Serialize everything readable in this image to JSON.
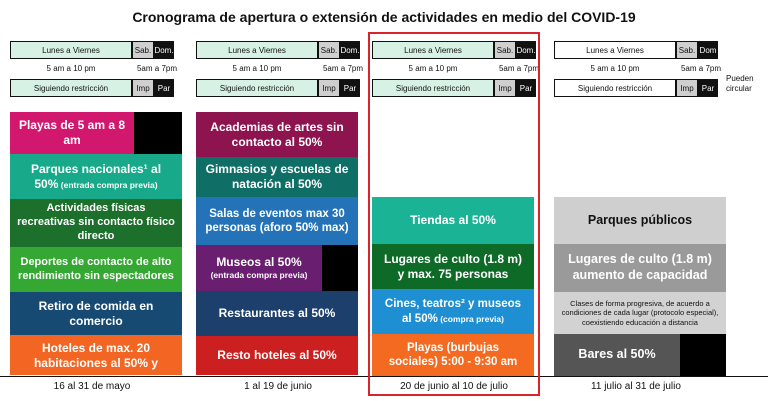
{
  "title": "Cronograma de apertura o extensión de actividades en medio del COVID-19",
  "schedule_labels": {
    "weekdays": "Lunes a Viernes",
    "saturday": "Sab.",
    "sunday": "Dom.",
    "sunday_last": "Dom",
    "hours_weekdays": "5 am a 10 pm",
    "hours_weekend": "5am a 7pm",
    "restriction": "Siguiendo restricción",
    "impar": "Imp",
    "par": "Par",
    "pueden_1": "Pueden",
    "pueden_2": "circular"
  },
  "colors": {
    "magenta": "#d1176e",
    "teal": "#159e86",
    "green": "#1d6f2c",
    "lime": "#35a833",
    "navy": "#174a73",
    "orange": "#f26522",
    "maroon": "#8e1450",
    "dark_teal": "#0f6f67",
    "blue": "#2472b7",
    "purple": "#6a1e6f",
    "dark_navy": "#1c3f6b",
    "red": "#cc1f1f",
    "aqua": "#1bb396",
    "dark_green": "#0d6a27",
    "sky": "#1f8fd3",
    "orange2": "#f46a21",
    "gray_light": "#cfcfcf",
    "gray_mid": "#9a9a9a",
    "gray_dark": "#555555",
    "highlight_red": "#d9242b"
  },
  "columns": [
    {
      "date": "16 al 31 de mayo",
      "blocks": [
        {
          "line1": "Playas de 5 am a 8",
          "line2": "am"
        },
        {
          "line1": "Parques nacionales¹ al",
          "line2": "50%",
          "small": " (entrada compra previa)"
        },
        {
          "line1": "Actividades físicas",
          "line2": "recreativas sin contacto físico",
          "line3": "directo"
        },
        {
          "line1": "Deportes de contacto de alto",
          "line2": "rendimiento sin espectadores"
        },
        {
          "line1": "Retiro de comida en",
          "line2": "comercio"
        },
        {
          "line1": "Hoteles de max. 20",
          "line2": "habitaciones al 50% y"
        }
      ]
    },
    {
      "date": "1 al 19 de junio",
      "blocks": [
        {
          "line1": "Academias de artes sin",
          "line2": "contacto al 50%"
        },
        {
          "line1": "Gimnasios y escuelas de",
          "line2": "natación al 50%"
        },
        {
          "line1": "Salas de eventos max 30",
          "line2": "personas (aforo 50% max)"
        },
        {
          "line1": "Museos al 50%",
          "small": "(entrada compra previa)"
        },
        {
          "line1": "Restaurantes al 50%"
        },
        {
          "line1": "Resto hoteles al 50%"
        }
      ]
    },
    {
      "date": "20 de junio al 10 de julio",
      "blocks": [
        {
          "line1": "Tiendas al 50%"
        },
        {
          "line1": "Lugares de culto (1.8 m)",
          "line2": "y max. 75 personas"
        },
        {
          "line1": "Cines, teatros² y museos",
          "line2": "al 50%",
          "small": " (compra previa)"
        },
        {
          "line1": "Playas (burbujas",
          "line2": "sociales) 5:00 - 9:30 am"
        }
      ]
    },
    {
      "date": "11 julio al 31 de julio",
      "blocks": [
        {
          "line1": "Parques públicos"
        },
        {
          "line1": "Lugares de culto (1.8 m)",
          "line2": "aumento de capacidad"
        },
        {
          "small1": "Clases de forma progresiva, de acuerdo a",
          "small2": "condiciones de cada lugar (protocolo especial),",
          "small3": "coexistiendo educación a distancia"
        },
        {
          "line1": "Bares al 50%"
        }
      ]
    }
  ]
}
